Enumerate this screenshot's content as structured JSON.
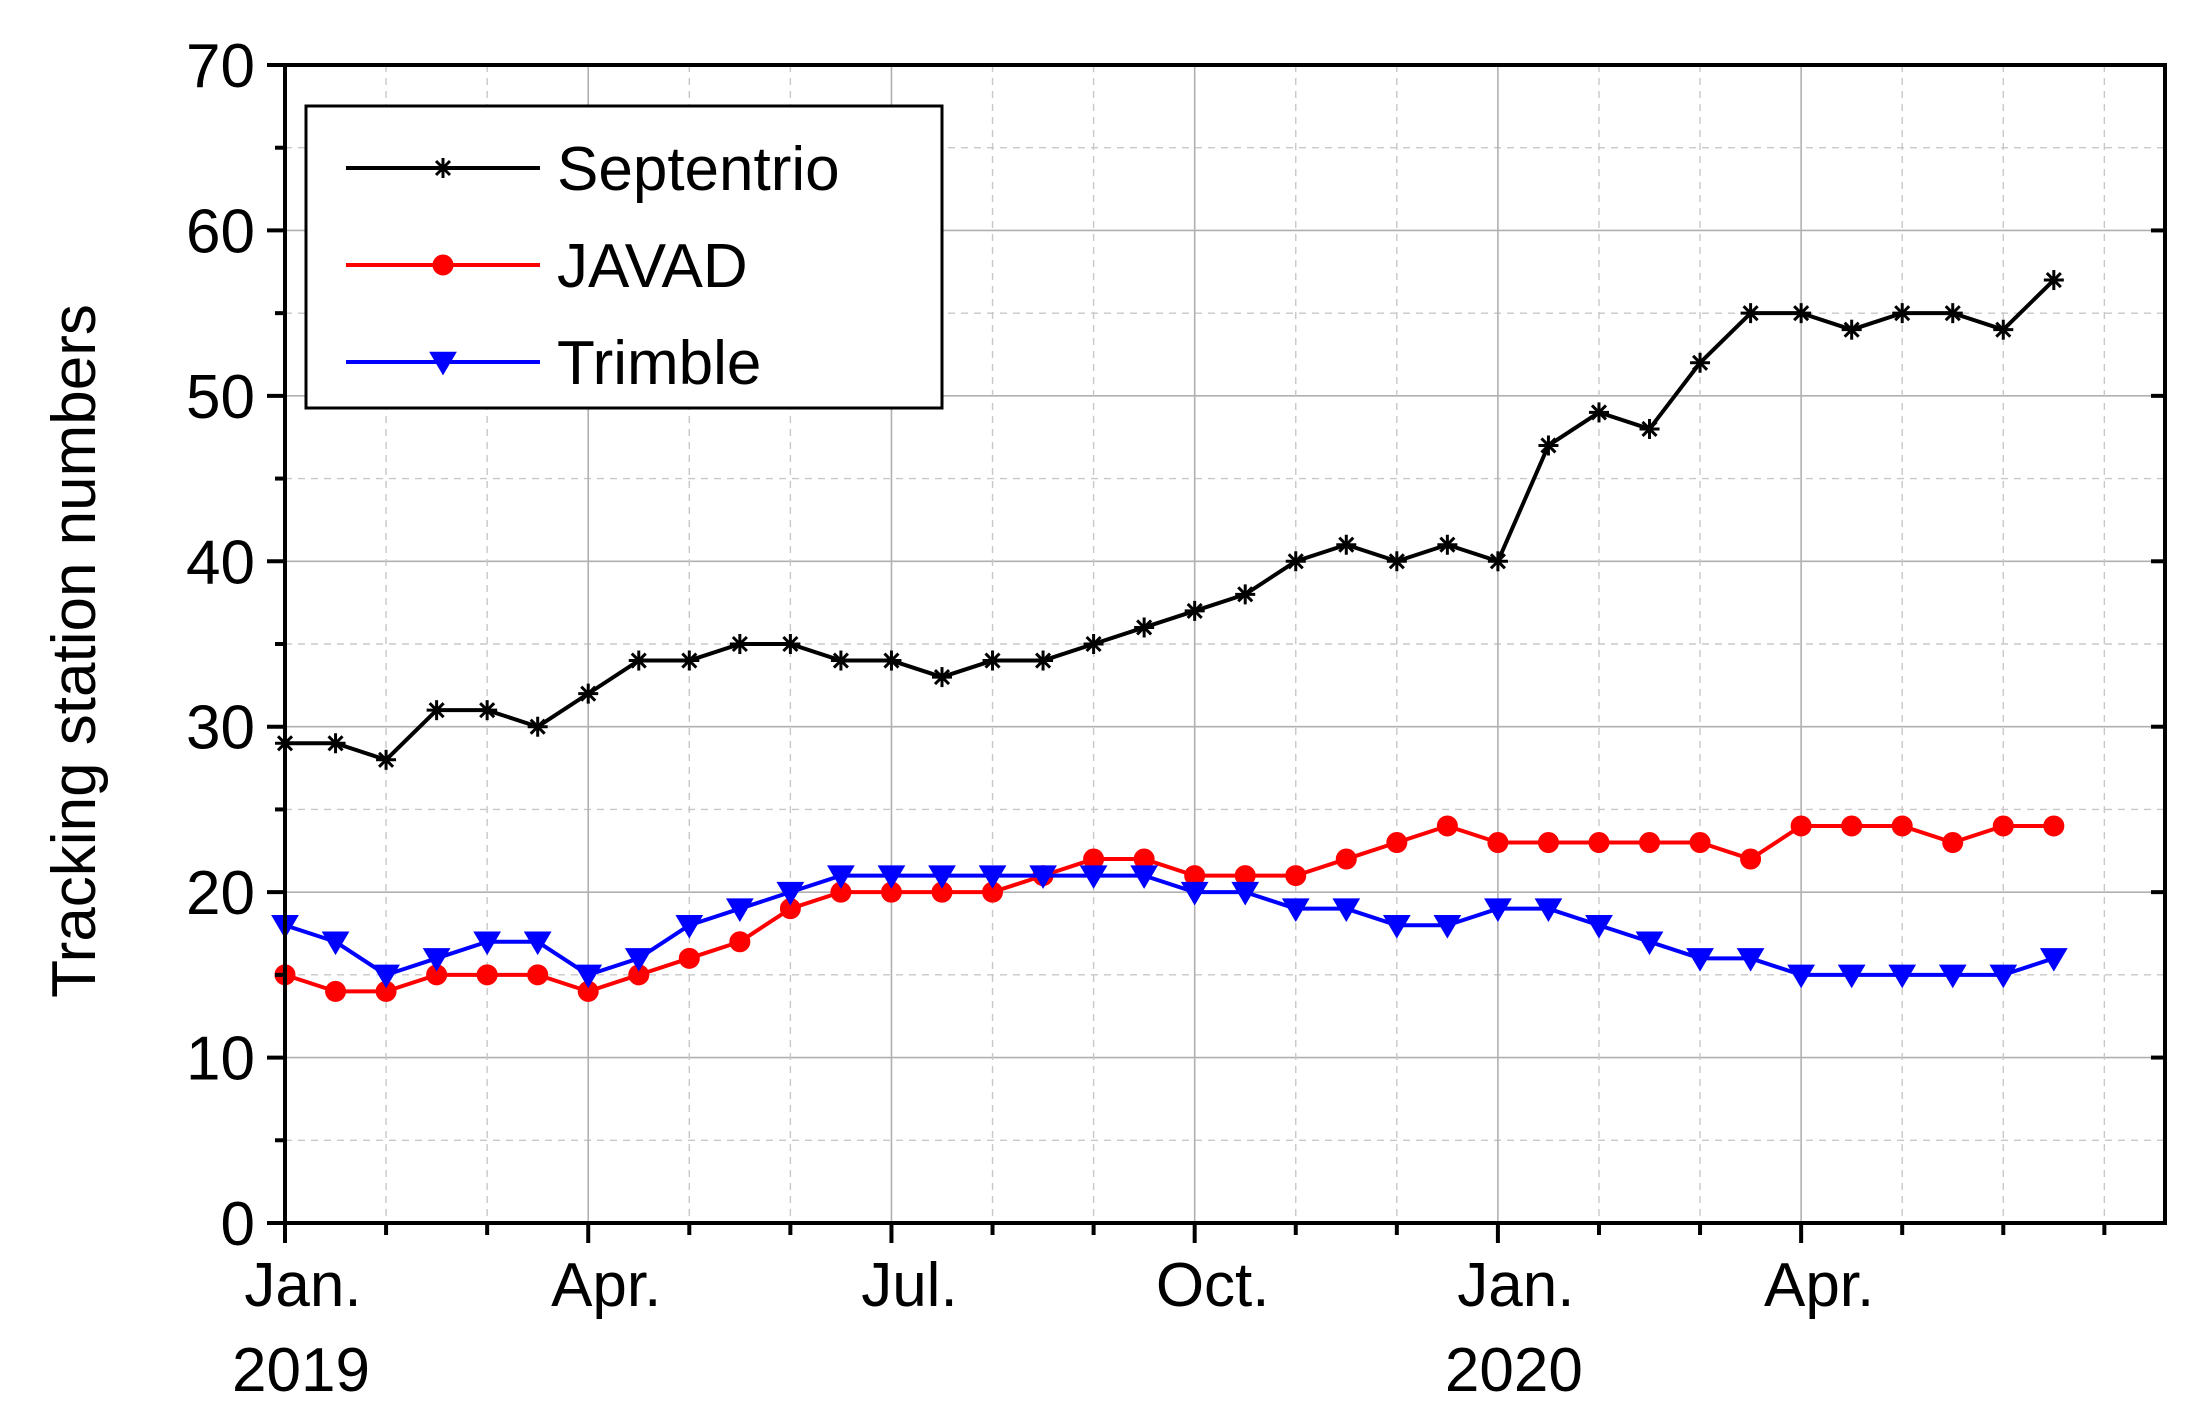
{
  "chart_data": {
    "type": "line",
    "title": "",
    "xlabel": "",
    "ylabel": "Tracking station numbers",
    "xlim_months": [
      0,
      18.6
    ],
    "ylim": [
      0,
      70
    ],
    "y_ticks": [
      0,
      10,
      20,
      30,
      40,
      50,
      60,
      70
    ],
    "x_ticks": [
      {
        "month": 0,
        "label": "Jan.",
        "year": "2019"
      },
      {
        "month": 3,
        "label": "Apr.",
        "year": ""
      },
      {
        "month": 6,
        "label": "Jul.",
        "year": ""
      },
      {
        "month": 9,
        "label": "Oct.",
        "year": ""
      },
      {
        "month": 12,
        "label": "Jan.",
        "year": "2020"
      },
      {
        "month": 15,
        "label": "Apr.",
        "year": ""
      }
    ],
    "grid": true,
    "legend_position": "top-left",
    "series": [
      {
        "name": "Septentrio",
        "color": "#000000",
        "marker": "asterisk",
        "months": [
          0,
          0.5,
          1,
          1.5,
          2,
          2.5,
          3,
          3.5,
          4,
          4.5,
          5,
          5.5,
          6,
          6.5,
          7,
          7.5,
          8,
          8.5,
          9,
          9.5,
          10,
          10.5,
          11,
          11.5,
          12,
          12.5,
          13,
          13.5,
          14,
          14.5,
          15,
          15.5,
          16,
          16.5,
          17,
          17.5
        ],
        "values": [
          29,
          29,
          28,
          31,
          31,
          30,
          32,
          34,
          34,
          35,
          35,
          34,
          34,
          33,
          34,
          34,
          35,
          36,
          37,
          38,
          40,
          41,
          40,
          41,
          40,
          47,
          49,
          48,
          52,
          55,
          55,
          54,
          55,
          55,
          54,
          57
        ]
      },
      {
        "name": "JAVAD",
        "color": "#ff0000",
        "marker": "circle",
        "months": [
          0,
          0.5,
          1,
          1.5,
          2,
          2.5,
          3,
          3.5,
          4,
          4.5,
          5,
          5.5,
          6,
          6.5,
          7,
          7.5,
          8,
          8.5,
          9,
          9.5,
          10,
          10.5,
          11,
          11.5,
          12,
          12.5,
          13,
          13.5,
          14,
          14.5,
          15,
          15.5,
          16,
          16.5,
          17,
          17.5
        ],
        "values": [
          15,
          14,
          14,
          15,
          15,
          15,
          14,
          15,
          16,
          17,
          19,
          20,
          20,
          20,
          20,
          21,
          22,
          22,
          21,
          21,
          21,
          22,
          23,
          24,
          23,
          23,
          23,
          23,
          23,
          22,
          24,
          24,
          24,
          23,
          24,
          24
        ]
      },
      {
        "name": "Trimble",
        "color": "#0000ff",
        "marker": "triangle-down",
        "months": [
          0,
          0.5,
          1,
          1.5,
          2,
          2.5,
          3,
          3.5,
          4,
          4.5,
          5,
          5.5,
          6,
          6.5,
          7,
          7.5,
          8,
          8.5,
          9,
          9.5,
          10,
          10.5,
          11,
          11.5,
          12,
          12.5,
          13,
          13.5,
          14,
          14.5,
          15,
          15.5,
          16,
          16.5,
          17,
          17.5
        ],
        "values": [
          18,
          17,
          15,
          16,
          17,
          17,
          15,
          16,
          18,
          19,
          20,
          21,
          21,
          21,
          21,
          21,
          21,
          21,
          20,
          20,
          19,
          19,
          18,
          18,
          19,
          19,
          18,
          17,
          16,
          16,
          15,
          15,
          15,
          15,
          15,
          16
        ]
      }
    ]
  }
}
